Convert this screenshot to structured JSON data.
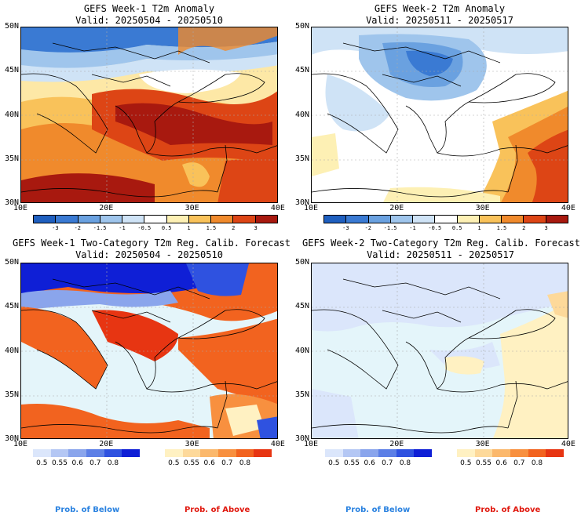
{
  "panels": [
    {
      "title": "GEFS Week-1 T2m Anomaly",
      "valid": "Valid: 20250504 - 20250510"
    },
    {
      "title": "GEFS Week-2 T2m Anomaly",
      "valid": "Valid: 20250511 - 20250517"
    },
    {
      "title": "GEFS Week-1 Two-Category T2m Reg. Calib. Forecast",
      "valid": "Valid: 20250504 - 20250510"
    },
    {
      "title": "GEFS Week-2 Two-Category T2m Reg. Calib. Forecast",
      "valid": "Valid: 20250511 - 20250517"
    }
  ],
  "lat_labels": [
    "50N",
    "45N",
    "40N",
    "35N",
    "30N"
  ],
  "lon_labels": [
    "10E",
    "20E",
    "30E",
    "40E"
  ],
  "anomaly_colorbar": {
    "labels": [
      "-3",
      "-2",
      "-1.5",
      "-1",
      "-0.5",
      "0.5",
      "1",
      "1.5",
      "2",
      "3"
    ],
    "colors": [
      "#1f5fbf",
      "#3a7ad3",
      "#6aa1e0",
      "#9fc5ec",
      "#cfe3f6",
      "#ffffff",
      "#fdf0b4",
      "#f9c25a",
      "#f08a2c",
      "#dd4515",
      "#a8190f"
    ]
  },
  "prob_below": {
    "legend": "Prob. of Below",
    "labels": [
      "0.5",
      "0.55",
      "0.6",
      "0.7",
      "0.8"
    ],
    "colors": [
      "#dbe6fb",
      "#b4c7f4",
      "#8aa5ec",
      "#5c7fe6",
      "#2f52e0",
      "#0f1fd6"
    ]
  },
  "prob_above": {
    "legend": "Prob. of Above",
    "labels": [
      "0.5",
      "0.55",
      "0.6",
      "0.7",
      "0.8"
    ],
    "colors": [
      "#fff1c2",
      "#fdd99a",
      "#fbb86c",
      "#f8903f",
      "#f2631f",
      "#e73512"
    ]
  },
  "map_colors": {
    "ocean_prob": "#e4f5fa",
    "grid": "#bbbbbb"
  }
}
